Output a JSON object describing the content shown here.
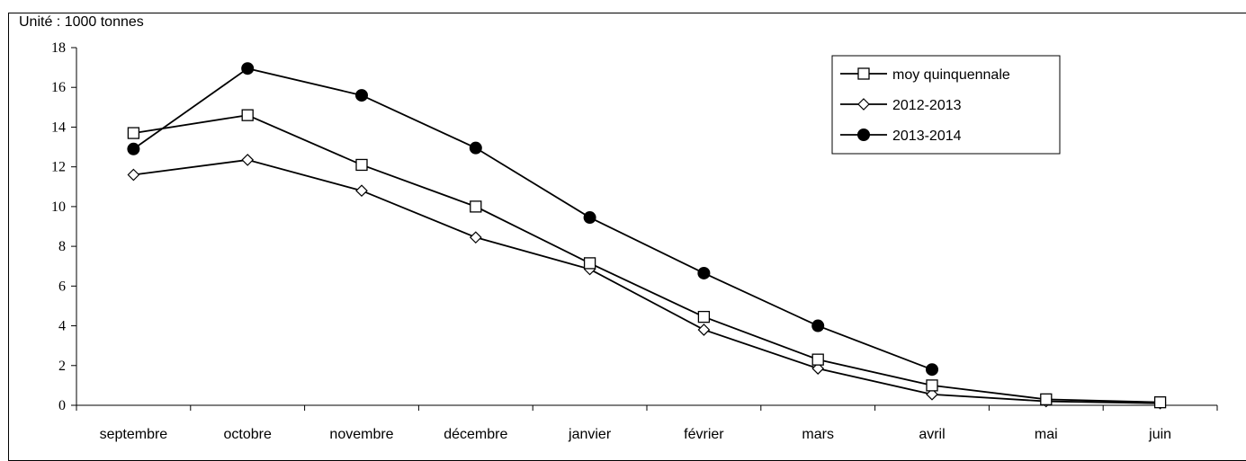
{
  "chart_data": {
    "type": "line",
    "unit_label": "Unité : 1000 tonnes",
    "categories": [
      "septembre",
      "octobre",
      "novembre",
      "décembre",
      "janvier",
      "février",
      "mars",
      "avril",
      "mai",
      "juin"
    ],
    "ylim": [
      0,
      18
    ],
    "yticks": [
      0,
      2,
      4,
      6,
      8,
      10,
      12,
      14,
      16,
      18
    ],
    "grid": false,
    "legend_position": "top-right",
    "series": [
      {
        "name": "moy quinquennale",
        "marker": "square-open",
        "color": "#000000",
        "values": [
          13.7,
          14.6,
          12.1,
          10.0,
          7.15,
          4.45,
          2.3,
          1.0,
          0.3,
          0.15
        ]
      },
      {
        "name": "2012-2013",
        "marker": "diamond-open",
        "color": "#000000",
        "values": [
          11.6,
          12.35,
          10.8,
          8.45,
          6.85,
          3.8,
          1.85,
          0.55,
          0.2,
          0.1
        ]
      },
      {
        "name": "2013-2014",
        "marker": "circle-filled",
        "color": "#000000",
        "values": [
          12.9,
          16.95,
          15.6,
          12.95,
          9.45,
          6.65,
          4.0,
          1.8,
          null,
          null
        ]
      }
    ]
  }
}
